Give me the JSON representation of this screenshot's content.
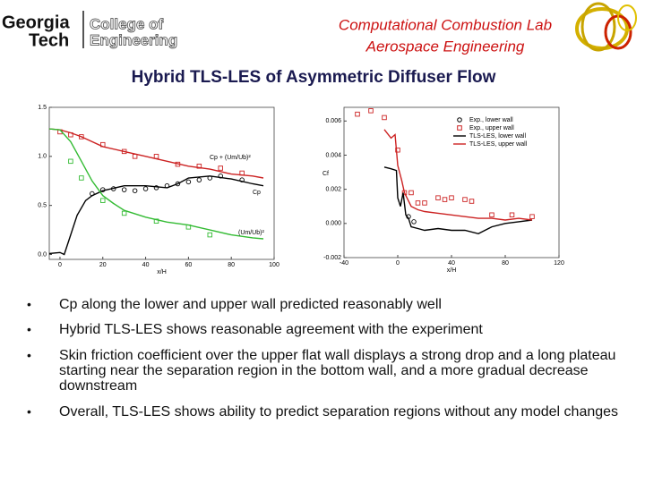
{
  "header": {
    "logo_line1": "Georgia",
    "logo_line2": "Tech",
    "college_line1": "College of",
    "college_line2": "Engineering",
    "lab": "Computational Combustion Lab",
    "department": "Aerospace Engineering"
  },
  "title": "Hybrid TLS-LES of Asymmetric Diffuser Flow",
  "chart_data": [
    {
      "type": "line",
      "xlabel": "x/H",
      "xlim": [
        -5,
        100
      ],
      "ylim": [
        -0.05,
        1.5
      ],
      "xticks": [
        0,
        20,
        40,
        60,
        80,
        100
      ],
      "yticks": [
        {
          "value": 0,
          "label": "0.0"
        },
        {
          "value": 0.5,
          "label": "0.5"
        },
        {
          "value": 1,
          "label": "1.0"
        },
        {
          "value": 1.5,
          "label": "1.5"
        }
      ],
      "annotations": [
        "Cp + (Um/Ub)²",
        "Cp",
        "(Um/Ub)²"
      ],
      "series": [
        {
          "style": "line",
          "color": "#cc2222",
          "x": [
            -5,
            0,
            5,
            10,
            20,
            30,
            40,
            50,
            60,
            70,
            80,
            90,
            95
          ],
          "y": [
            1.28,
            1.27,
            1.24,
            1.2,
            1.1,
            1.05,
            1.0,
            0.95,
            0.9,
            0.87,
            0.82,
            0.8,
            0.78
          ]
        },
        {
          "style": "square",
          "color": "#cc2222",
          "x": [
            0,
            5,
            10,
            20,
            30,
            35,
            45,
            55,
            65,
            75,
            85
          ],
          "y": [
            1.25,
            1.22,
            1.2,
            1.12,
            1.05,
            1.0,
            1.0,
            0.92,
            0.9,
            0.88,
            0.83
          ]
        },
        {
          "style": "line",
          "color": "#000000",
          "x": [
            -5,
            0,
            2,
            5,
            8,
            12,
            15,
            20,
            30,
            40,
            50,
            55,
            60,
            70,
            80,
            90,
            95
          ],
          "y": [
            0.01,
            0.02,
            0.0,
            0.2,
            0.4,
            0.55,
            0.6,
            0.65,
            0.7,
            0.7,
            0.68,
            0.72,
            0.78,
            0.8,
            0.77,
            0.72,
            0.7
          ]
        },
        {
          "style": "circle",
          "color": "#000000",
          "x": [
            15,
            20,
            25,
            30,
            35,
            40,
            45,
            50,
            55,
            60,
            65,
            70,
            75,
            85
          ],
          "y": [
            0.62,
            0.66,
            0.67,
            0.66,
            0.65,
            0.67,
            0.68,
            0.7,
            0.72,
            0.74,
            0.76,
            0.78,
            0.8,
            0.76
          ]
        },
        {
          "style": "line",
          "color": "#33bb33",
          "x": [
            -5,
            0,
            5,
            10,
            15,
            20,
            25,
            30,
            40,
            50,
            60,
            70,
            80,
            90,
            95
          ],
          "y": [
            1.28,
            1.27,
            1.15,
            0.95,
            0.75,
            0.6,
            0.52,
            0.45,
            0.38,
            0.33,
            0.3,
            0.25,
            0.2,
            0.17,
            0.16
          ]
        },
        {
          "style": "square",
          "color": "#33bb33",
          "x": [
            5,
            10,
            20,
            30,
            45,
            60,
            70
          ],
          "y": [
            0.95,
            0.78,
            0.55,
            0.42,
            0.34,
            0.28,
            0.2
          ]
        }
      ]
    },
    {
      "type": "line",
      "xlabel": "x/H",
      "ylabel": "Cf",
      "xlim": [
        -40,
        120
      ],
      "ylim": [
        -0.002,
        0.0068
      ],
      "xticks": [
        -40,
        0,
        40,
        80,
        120
      ],
      "yticks": [
        -0.002,
        {
          "value": 0,
          "label": "0.000"
        },
        0.002,
        0.004,
        0.006
      ],
      "legend": "upper right",
      "series": [
        {
          "name": "Exp., lower wall",
          "style": "circle",
          "color": "#000000",
          "x": [
            8,
            12
          ],
          "y": [
            0.0004,
            0.0001
          ]
        },
        {
          "name": "Exp., upper wall",
          "style": "square",
          "color": "#cc2222",
          "x": [
            -30,
            -20,
            -10,
            0,
            5,
            10,
            15,
            20,
            30,
            35,
            40,
            50,
            55,
            70,
            85,
            100
          ],
          "y": [
            0.0064,
            0.0066,
            0.0062,
            0.0043,
            0.0018,
            0.0018,
            0.0012,
            0.0012,
            0.0015,
            0.0014,
            0.0015,
            0.0014,
            0.0013,
            0.0005,
            0.0005,
            0.0004
          ]
        },
        {
          "name": "TLS-LES, lower wall",
          "style": "line",
          "color": "#000000",
          "x": [
            -10,
            -5,
            -1,
            0,
            2,
            4,
            6,
            8,
            10,
            15,
            20,
            30,
            40,
            50,
            60,
            70,
            80,
            90,
            100
          ],
          "y": [
            0.0033,
            0.0032,
            0.0031,
            0.0015,
            0.001,
            0.0018,
            0.0005,
            0.0003,
            -0.0002,
            -0.0003,
            -0.0004,
            -0.0003,
            -0.0004,
            -0.0004,
            -0.0006,
            -0.0002,
            0.0,
            0.0001,
            0.0002
          ]
        },
        {
          "name": "TLS-LES, upper wall",
          "style": "line",
          "color": "#cc2222",
          "x": [
            -10,
            -5,
            -2,
            0,
            3,
            5,
            10,
            15,
            20,
            30,
            40,
            50,
            60,
            70,
            80,
            90,
            100
          ],
          "y": [
            0.0055,
            0.005,
            0.0052,
            0.0034,
            0.0025,
            0.0018,
            0.001,
            0.0008,
            0.0007,
            0.0006,
            0.0005,
            0.0004,
            0.0003,
            0.0003,
            0.0002,
            0.0003,
            0.0002
          ]
        }
      ]
    }
  ],
  "bullets": [
    "Cp along the lower and upper wall predicted reasonably well",
    "Hybrid TLS-LES shows reasonable agreement with the experiment",
    "Skin friction coefficient over the upper flat wall displays a strong drop and a long plateau starting near the separation region in the bottom wall, and a more gradual decrease downstream",
    "Overall, TLS-LES shows ability to predict separation regions without any model changes"
  ]
}
